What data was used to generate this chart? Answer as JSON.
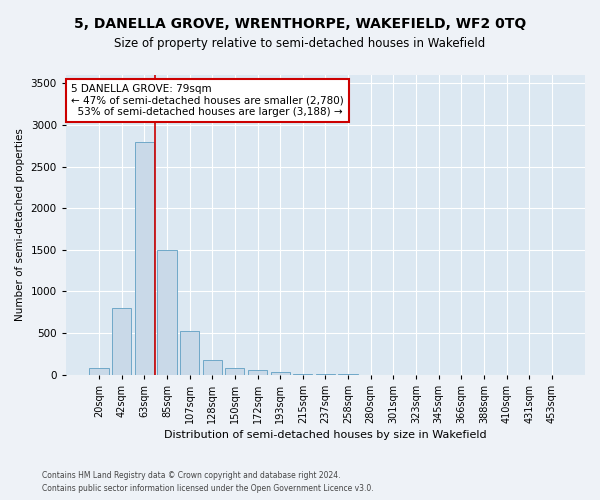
{
  "title": "5, DANELLA GROVE, WRENTHORPE, WAKEFIELD, WF2 0TQ",
  "subtitle": "Size of property relative to semi-detached houses in Wakefield",
  "xlabel": "Distribution of semi-detached houses by size in Wakefield",
  "ylabel": "Number of semi-detached properties",
  "categories": [
    "20sqm",
    "42sqm",
    "63sqm",
    "85sqm",
    "107sqm",
    "128sqm",
    "150sqm",
    "172sqm",
    "193sqm",
    "215sqm",
    "237sqm",
    "258sqm",
    "280sqm",
    "301sqm",
    "323sqm",
    "345sqm",
    "366sqm",
    "388sqm",
    "410sqm",
    "431sqm",
    "453sqm"
  ],
  "values": [
    80,
    800,
    2800,
    1500,
    530,
    175,
    80,
    50,
    35,
    5,
    2,
    2,
    1,
    1,
    1,
    0,
    0,
    0,
    0,
    0,
    0
  ],
  "bar_color": "#c9d9e8",
  "bar_edge_color": "#6fa8c8",
  "property_line_index": 2.48,
  "annotation_label": "5 DANELLA GROVE: 79sqm",
  "pct_smaller": 47,
  "n_smaller": "2,780",
  "pct_larger": 53,
  "n_larger": "3,188",
  "ylim": [
    0,
    3600
  ],
  "yticks": [
    0,
    500,
    1000,
    1500,
    2000,
    2500,
    3000,
    3500
  ],
  "footer1": "Contains HM Land Registry data © Crown copyright and database right 2024.",
  "footer2": "Contains public sector information licensed under the Open Government Licence v3.0.",
  "bg_color": "#eef2f7",
  "plot_bg_color": "#dce8f2",
  "grid_color": "#ffffff",
  "title_fontsize": 10,
  "subtitle_fontsize": 8.5,
  "annotation_box_color": "#ffffff",
  "annotation_box_edge": "#cc0000",
  "property_line_color": "#cc0000",
  "ann_fontsize": 7.5,
  "footer_fontsize": 5.5,
  "ylabel_fontsize": 7.5,
  "xlabel_fontsize": 8,
  "tick_fontsize": 7,
  "ytick_fontsize": 7.5
}
